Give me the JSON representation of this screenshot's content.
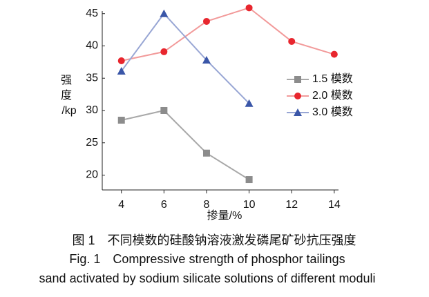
{
  "chart_data": {
    "type": "line",
    "y_label_lines": [
      "强",
      "度",
      "/kp"
    ],
    "x_label": "掺量/%",
    "x": [
      4,
      6,
      8,
      10,
      12,
      14
    ],
    "series": [
      {
        "name": "1.5 模数",
        "color": "#a8a8a8",
        "marker_color": "#8c8c8c",
        "marker": "square",
        "values": [
          28.5,
          30,
          23.4,
          19.3,
          null,
          null
        ]
      },
      {
        "name": "2.0 模数",
        "color": "#f29a9a",
        "marker_color": "#e8262e",
        "marker": "circle",
        "values": [
          37.7,
          39.1,
          43.8,
          45.9,
          40.7,
          38.7
        ]
      },
      {
        "name": "3.0 模数",
        "color": "#98a6d4",
        "marker_color": "#3a56a8",
        "marker": "triangle",
        "values": [
          36.1,
          45,
          37.8,
          31.1,
          null,
          null
        ]
      }
    ],
    "xlim": [
      3.1,
      14.2
    ],
    "xticks": [
      4,
      6,
      8,
      10,
      12,
      14
    ],
    "ylim": [
      17.7,
      45.4
    ],
    "yticks": [
      20,
      25,
      30,
      35,
      40,
      45
    ],
    "grid": false,
    "legend": "right",
    "captions": [
      "图 1　不同模数的硅酸钠溶液激发磷尾矿砂抗压强度",
      "Fig. 1　Compressive strength of phosphor tailings",
      "sand activated by sodium silicate solutions of different moduli"
    ]
  }
}
